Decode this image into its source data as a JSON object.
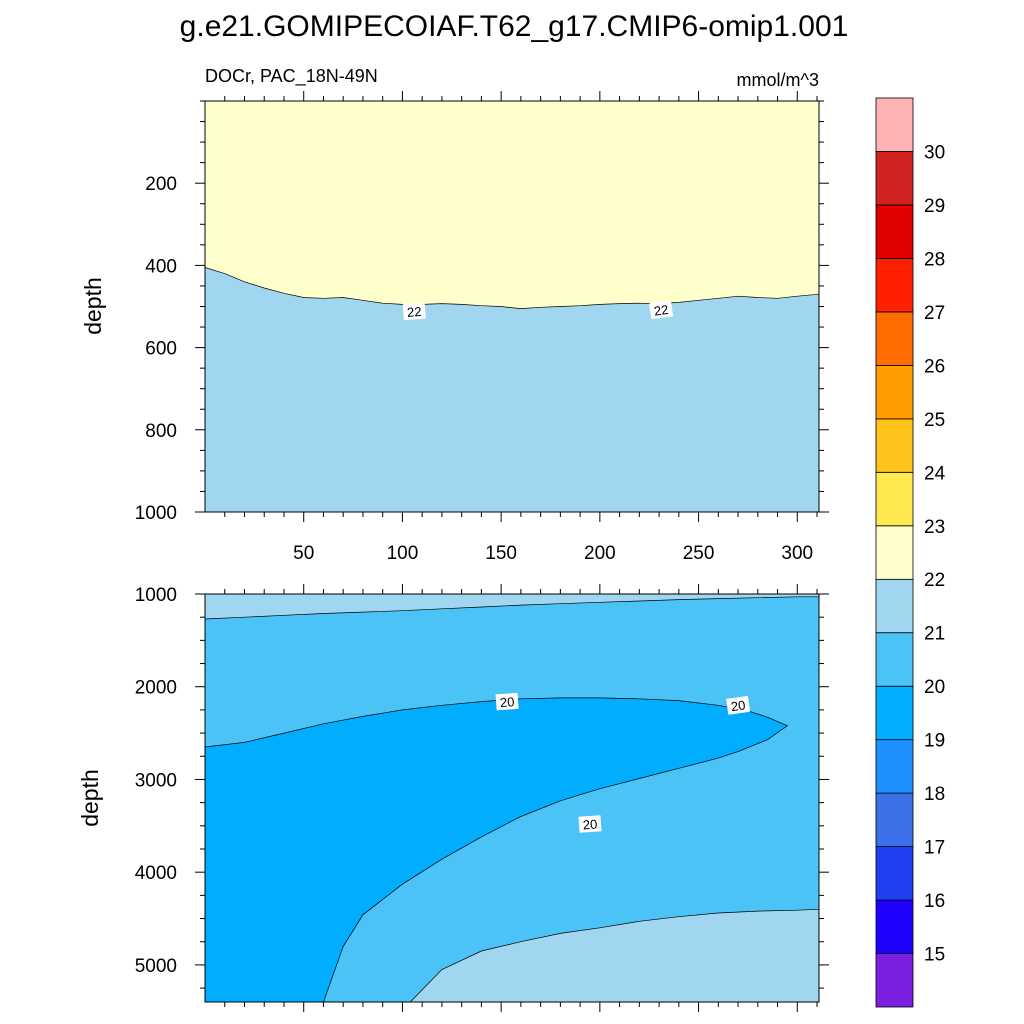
{
  "chart_data": {
    "type": "filled-contour",
    "title": "g.e21.GOMIPECOIAF.T62_g17.CMIP6-omip1.001",
    "subtitle_left": "DOCr, PAC_18N-49N",
    "subtitle_right": "mmol/m^3",
    "x_range": [
      0,
      311
    ],
    "x_ticks": [
      50,
      100,
      150,
      200,
      250,
      300
    ],
    "ylabel": "depth",
    "colorbar": {
      "labels": [
        "15",
        "16",
        "17",
        "18",
        "19",
        "20",
        "21",
        "22",
        "23",
        "24",
        "25",
        "26",
        "27",
        "28",
        "29",
        "30"
      ],
      "colors": [
        "#7b1fe0",
        "#1e00ff",
        "#2040f0",
        "#3a70e8",
        "#1e90ff",
        "#00adff",
        "#4bc3f7",
        "#a0d6ef",
        "#ffffcc",
        "#ffe850",
        "#ffc41c",
        "#ff9c00",
        "#ff6c00",
        "#ff2000",
        "#e00000",
        "#d22121",
        "#ffb3b3"
      ]
    },
    "panels": [
      {
        "name": "upper",
        "y_range": [
          0,
          1000
        ],
        "y_ticks": [
          200,
          400,
          600,
          800,
          1000
        ],
        "y_minor": 50,
        "regions": [
          {
            "level": "22-23",
            "color": "#ffffcc",
            "note": "above 22 contour"
          },
          {
            "level": "21-22",
            "color": "#a0d6ef",
            "note": "below 22 contour"
          }
        ],
        "contours": [
          {
            "value": 22,
            "x": [
              0,
              10,
              20,
              30,
              40,
              50,
              60,
              70,
              80,
              90,
              100,
              110,
              120,
              130,
              140,
              150,
              160,
              170,
              180,
              190,
              200,
              210,
              220,
              230,
              240,
              250,
              260,
              270,
              280,
              290,
              300,
              311
            ],
            "y": [
              405,
              420,
              440,
              455,
              468,
              478,
              480,
              478,
              485,
              492,
              495,
              495,
              493,
              495,
              498,
              500,
              505,
              502,
              500,
              498,
              495,
              493,
              492,
              493,
              490,
              485,
              480,
              475,
              478,
              480,
              475,
              470
            ]
          }
        ],
        "contour_labels": [
          {
            "text": "22",
            "x": 106,
            "y": 512
          },
          {
            "text": "22",
            "x": 231,
            "y": 508
          }
        ]
      },
      {
        "name": "lower",
        "y_range": [
          1000,
          5400
        ],
        "y_ticks": [
          1000,
          2000,
          3000,
          4000,
          5000
        ],
        "y_minor": 250,
        "regions": [
          {
            "level": "21-22",
            "color": "#a0d6ef"
          },
          {
            "level": "20-21",
            "color": "#4bc3f7"
          },
          {
            "level": "19-20",
            "color": "#00adff"
          }
        ],
        "contours": [
          {
            "value": 21,
            "x": [
              0,
              20,
              40,
              60,
              80,
              100,
              120,
              140,
              160,
              180,
              200,
              220,
              240,
              260,
              280,
              300,
              311
            ],
            "y": [
              1270,
              1250,
              1230,
              1210,
              1195,
              1180,
              1160,
              1140,
              1120,
              1105,
              1090,
              1075,
              1060,
              1050,
              1040,
              1030,
              1030
            ]
          },
          {
            "value": 20,
            "x": [
              0,
              20,
              40,
              60,
              80,
              100,
              120,
              140,
              160,
              180,
              200,
              220,
              240,
              260,
              275,
              285,
              295,
              285,
              270,
              260,
              240,
              220,
              200,
              180,
              160,
              140,
              120,
              100,
              80,
              70,
              60
            ],
            "y": [
              2650,
              2600,
              2500,
              2400,
              2320,
              2250,
              2200,
              2160,
              2130,
              2120,
              2120,
              2130,
              2150,
              2200,
              2260,
              2330,
              2420,
              2570,
              2700,
              2770,
              2880,
              2990,
              3100,
              3230,
              3400,
              3620,
              3860,
              4130,
              4460,
              4800,
              5400
            ]
          },
          {
            "value": 21,
            "x": [
              104,
              120,
              140,
              160,
              180,
              200,
              220,
              240,
              260,
              280,
              300,
              311
            ],
            "y": [
              5400,
              5050,
              4850,
              4750,
              4660,
              4600,
              4530,
              4480,
              4440,
              4420,
              4410,
              4400
            ]
          }
        ],
        "contour_labels": [
          {
            "text": "20",
            "x": 153,
            "y": 2160
          },
          {
            "text": "20",
            "x": 270,
            "y": 2200
          },
          {
            "text": "20",
            "x": 195,
            "y": 3480
          }
        ]
      }
    ]
  }
}
